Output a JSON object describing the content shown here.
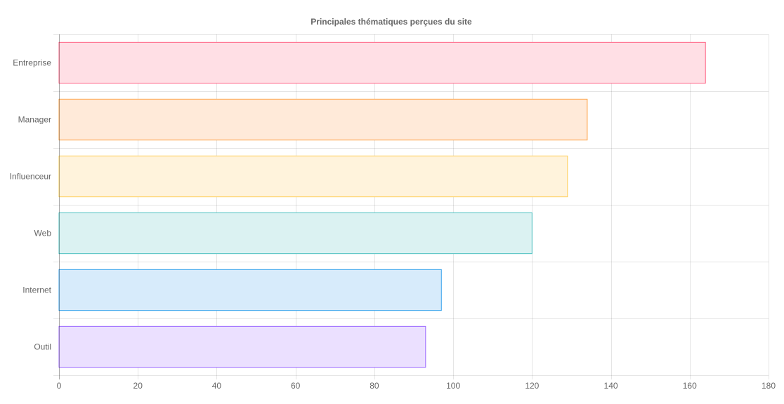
{
  "chart_data": {
    "type": "bar",
    "orientation": "horizontal",
    "title": "Principales thématiques perçues du site",
    "categories": [
      "Entreprise",
      "Manager",
      "Influenceur",
      "Web",
      "Internet",
      "Outil"
    ],
    "values": [
      164,
      134,
      129,
      120,
      97,
      93
    ],
    "xlim": [
      0,
      180
    ],
    "xticks": [
      0,
      20,
      40,
      60,
      80,
      100,
      120,
      140,
      160,
      180
    ],
    "grid": true,
    "legend": "none",
    "colors": {
      "fill": [
        "#ffdfe5",
        "#ffead9",
        "#fff3dc",
        "#dbf2f2",
        "#d7ebfb",
        "#ebe0ff"
      ],
      "border": [
        "#ff6384",
        "#ff9f40",
        "#ffcd56",
        "#4bc0c0",
        "#36a2eb",
        "#9966ff"
      ]
    }
  }
}
